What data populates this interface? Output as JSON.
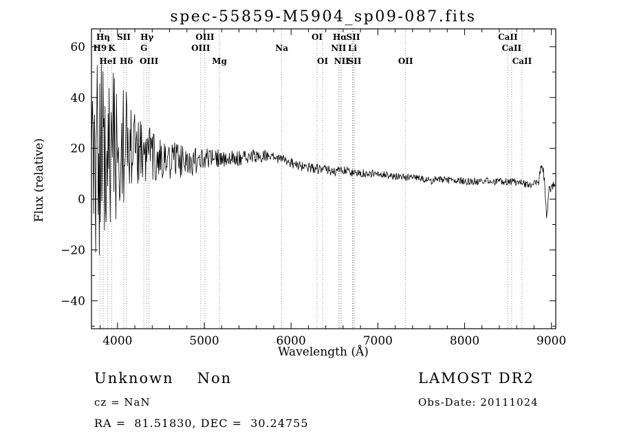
{
  "annotations": {
    "class": "Unknown",
    "subclass": "Non",
    "survey": "LAMOST DR2",
    "cz": "cz = NaN",
    "obs_date": "Obs-Date: 20111024",
    "ra_dec": "RA =  81.51830, DEC =  30.24755"
  },
  "chart_data": {
    "type": "line",
    "title": "spec-55859-M5904_sp09-087.fits",
    "xlabel": "Wavelength (Å)",
    "ylabel": "Flux (relative)",
    "xlim": [
      3700,
      9050
    ],
    "ylim": [
      -51,
      67
    ],
    "xticks": [
      4000,
      5000,
      6000,
      7000,
      8000,
      9000
    ],
    "x_minor_step": 200,
    "yticks": [
      -40,
      -20,
      0,
      20,
      40,
      60
    ],
    "y_minor_step": 10,
    "grid": false,
    "legend": "none",
    "line_color": "#000000",
    "spectral_lines": [
      {
        "label": "Hη",
        "wavelength": 3835,
        "row": 0
      },
      {
        "label": "SII",
        "wavelength": 4072,
        "row": 0
      },
      {
        "label": "Hγ",
        "wavelength": 4340,
        "row": 0
      },
      {
        "label": "OIII",
        "wavelength": 5007,
        "row": 0
      },
      {
        "label": "OI",
        "wavelength": 6300,
        "row": 0
      },
      {
        "label": "Hα",
        "wavelength": 6563,
        "row": 0
      },
      {
        "label": "SII",
        "wavelength": 6716,
        "row": 0
      },
      {
        "label": "CaII",
        "wavelength": 8498,
        "row": 0
      },
      {
        "label": "H9",
        "wavelength": 3798,
        "row": 1
      },
      {
        "label": "K",
        "wavelength": 3934,
        "row": 1
      },
      {
        "label": "G",
        "wavelength": 4304,
        "row": 1
      },
      {
        "label": "OIII",
        "wavelength": 4959,
        "row": 1
      },
      {
        "label": "Na",
        "wavelength": 5892,
        "row": 1
      },
      {
        "label": "NII",
        "wavelength": 6548,
        "row": 1
      },
      {
        "label": "Li",
        "wavelength": 6708,
        "row": 1
      },
      {
        "label": "CaII",
        "wavelength": 8542,
        "row": 1
      },
      {
        "label": "HeI",
        "wavelength": 3889,
        "row": 2
      },
      {
        "label": "Hδ",
        "wavelength": 4102,
        "row": 2
      },
      {
        "label": "OIII",
        "wavelength": 4363,
        "row": 2
      },
      {
        "label": "Mg",
        "wavelength": 5175,
        "row": 2
      },
      {
        "label": "OI",
        "wavelength": 6364,
        "row": 2
      },
      {
        "label": "NII",
        "wavelength": 6583,
        "row": 2
      },
      {
        "label": "SII",
        "wavelength": 6731,
        "row": 2
      },
      {
        "label": "OII",
        "wavelength": 7320,
        "row": 2
      },
      {
        "label": "CaII",
        "wavelength": 8662,
        "row": 2
      }
    ],
    "continuum": [
      [
        3700,
        12
      ],
      [
        3760,
        18
      ],
      [
        3820,
        15
      ],
      [
        3900,
        20
      ],
      [
        4000,
        20
      ],
      [
        4100,
        22
      ],
      [
        4200,
        20
      ],
      [
        4300,
        19
      ],
      [
        4400,
        18
      ],
      [
        4500,
        17
      ],
      [
        4600,
        16
      ],
      [
        4700,
        15
      ],
      [
        4800,
        15
      ],
      [
        4860,
        12
      ],
      [
        4900,
        15
      ],
      [
        5000,
        16
      ],
      [
        5200,
        16
      ],
      [
        5400,
        16
      ],
      [
        5600,
        17
      ],
      [
        5800,
        17
      ],
      [
        5900,
        16
      ],
      [
        6000,
        14
      ],
      [
        6100,
        13
      ],
      [
        6300,
        12
      ],
      [
        6500,
        11
      ],
      [
        6600,
        11.5
      ],
      [
        6700,
        10.5
      ],
      [
        7000,
        10
      ],
      [
        7200,
        9
      ],
      [
        7400,
        8.5
      ],
      [
        7600,
        7.8
      ],
      [
        7620,
        6
      ],
      [
        7650,
        7.8
      ],
      [
        7800,
        7.5
      ],
      [
        8000,
        7
      ],
      [
        8300,
        7
      ],
      [
        8600,
        6.5
      ],
      [
        8800,
        6
      ],
      [
        8850,
        6
      ],
      [
        8890,
        14
      ],
      [
        8920,
        8
      ],
      [
        8945,
        -7
      ],
      [
        8975,
        4
      ],
      [
        9010,
        5
      ],
      [
        9050,
        4
      ]
    ],
    "noise_amplitude": [
      [
        3700,
        45
      ],
      [
        3780,
        42
      ],
      [
        3850,
        36
      ],
      [
        3950,
        30
      ],
      [
        4050,
        24
      ],
      [
        4150,
        19
      ],
      [
        4250,
        15
      ],
      [
        4350,
        12
      ],
      [
        4450,
        10
      ],
      [
        4550,
        8.5
      ],
      [
        4700,
        7
      ],
      [
        4850,
        5.5
      ],
      [
        5000,
        4.5
      ],
      [
        5200,
        3.5
      ],
      [
        5500,
        2.8
      ],
      [
        5800,
        2.4
      ],
      [
        6100,
        2.1
      ],
      [
        6400,
        1.9
      ],
      [
        6700,
        1.7
      ],
      [
        7000,
        1.5
      ],
      [
        7400,
        1.4
      ],
      [
        7800,
        1.4
      ],
      [
        8200,
        1.5
      ],
      [
        8600,
        1.6
      ],
      [
        8850,
        1.9
      ],
      [
        9000,
        2.4
      ],
      [
        9050,
        2.0
      ]
    ],
    "noise_seed": 20111024,
    "sample_step": 6
  }
}
